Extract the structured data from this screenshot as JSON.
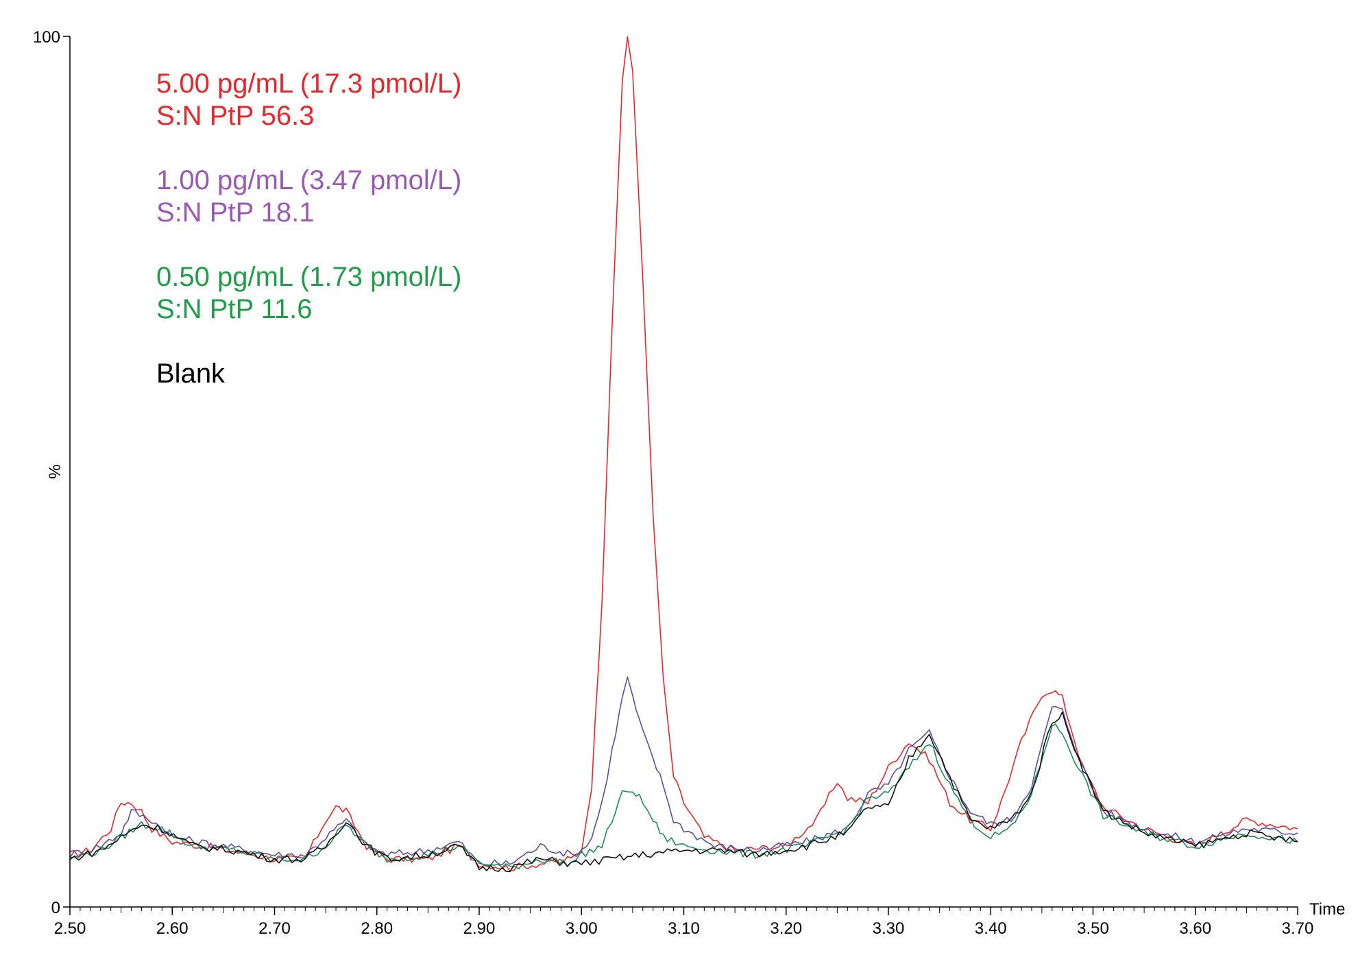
{
  "chart_data": {
    "type": "line",
    "title": "",
    "xlabel": "Time",
    "ylabel": "%",
    "xlim": [
      2.5,
      3.7
    ],
    "ylim": [
      0,
      100
    ],
    "x_ticks": [
      "2.50",
      "2.60",
      "2.70",
      "2.80",
      "2.90",
      "3.00",
      "3.10",
      "3.20",
      "3.30",
      "3.40",
      "3.50",
      "3.60",
      "3.70"
    ],
    "y_ticks": [
      "0",
      "100"
    ],
    "grid": false,
    "annotations": [
      {
        "line1": "5.00 pg/mL (17.3 pmol/L)",
        "line2": "S:N PtP 56.3",
        "color": "#e8262c"
      },
      {
        "line1": "1.00 pg/mL (3.47 pmol/L)",
        "line2": "S:N PtP 18.1",
        "color": "#9b59b6"
      },
      {
        "line1": "0.50 pg/mL (1.73 pmol/L)",
        "line2": "S:N PtP 11.6",
        "color": "#1e9e4a"
      },
      {
        "line1": "Blank",
        "line2": "",
        "color": "#000000"
      }
    ],
    "series": [
      {
        "color": "#e8262c",
        "points": [
          [
            2.5,
            6
          ],
          [
            2.52,
            6.5
          ],
          [
            2.54,
            9
          ],
          [
            2.55,
            12
          ],
          [
            2.56,
            12
          ],
          [
            2.57,
            11
          ],
          [
            2.58,
            9
          ],
          [
            2.6,
            7.5
          ],
          [
            2.63,
            7
          ],
          [
            2.66,
            6.5
          ],
          [
            2.7,
            5.5
          ],
          [
            2.73,
            5.5
          ],
          [
            2.75,
            10
          ],
          [
            2.76,
            11.5
          ],
          [
            2.77,
            11
          ],
          [
            2.79,
            7
          ],
          [
            2.81,
            5.5
          ],
          [
            2.85,
            5.5
          ],
          [
            2.88,
            7
          ],
          [
            2.9,
            5
          ],
          [
            2.93,
            4.5
          ],
          [
            2.96,
            5
          ],
          [
            2.99,
            5.5
          ],
          [
            3.0,
            6.5
          ],
          [
            3.01,
            14
          ],
          [
            3.02,
            35
          ],
          [
            3.03,
            67
          ],
          [
            3.04,
            95
          ],
          [
            3.045,
            100
          ],
          [
            3.05,
            96
          ],
          [
            3.06,
            72
          ],
          [
            3.07,
            45
          ],
          [
            3.08,
            26
          ],
          [
            3.09,
            15
          ],
          [
            3.1,
            12
          ],
          [
            3.12,
            8
          ],
          [
            3.15,
            6.5
          ],
          [
            3.2,
            7
          ],
          [
            3.23,
            10
          ],
          [
            3.25,
            14.5
          ],
          [
            3.26,
            12.5
          ],
          [
            3.28,
            12
          ],
          [
            3.3,
            16
          ],
          [
            3.32,
            19
          ],
          [
            3.34,
            17
          ],
          [
            3.36,
            12
          ],
          [
            3.38,
            10
          ],
          [
            3.4,
            9
          ],
          [
            3.41,
            12
          ],
          [
            3.43,
            19
          ],
          [
            3.45,
            24.5
          ],
          [
            3.46,
            25
          ],
          [
            3.47,
            24
          ],
          [
            3.49,
            16
          ],
          [
            3.51,
            11.5
          ],
          [
            3.55,
            9
          ],
          [
            3.6,
            7
          ],
          [
            3.65,
            10
          ],
          [
            3.7,
            9
          ]
        ]
      },
      {
        "color": "#5b4ea0",
        "points": [
          [
            2.5,
            6
          ],
          [
            2.53,
            7
          ],
          [
            2.55,
            8.5
          ],
          [
            2.56,
            11
          ],
          [
            2.58,
            10
          ],
          [
            2.6,
            8
          ],
          [
            2.65,
            7
          ],
          [
            2.7,
            6
          ],
          [
            2.73,
            6
          ],
          [
            2.75,
            8
          ],
          [
            2.77,
            10
          ],
          [
            2.79,
            7
          ],
          [
            2.81,
            6
          ],
          [
            2.85,
            6.5
          ],
          [
            2.88,
            7.5
          ],
          [
            2.9,
            5
          ],
          [
            2.93,
            5
          ],
          [
            2.96,
            7
          ],
          [
            2.99,
            6
          ],
          [
            3.0,
            6.5
          ],
          [
            3.01,
            8
          ],
          [
            3.02,
            12
          ],
          [
            3.03,
            18
          ],
          [
            3.04,
            24
          ],
          [
            3.045,
            26.5
          ],
          [
            3.05,
            24
          ],
          [
            3.06,
            20
          ],
          [
            3.07,
            17
          ],
          [
            3.08,
            14
          ],
          [
            3.09,
            10
          ],
          [
            3.1,
            9
          ],
          [
            3.13,
            7
          ],
          [
            3.17,
            6.5
          ],
          [
            3.22,
            7.5
          ],
          [
            3.26,
            9
          ],
          [
            3.28,
            13
          ],
          [
            3.3,
            14
          ],
          [
            3.32,
            18
          ],
          [
            3.34,
            20
          ],
          [
            3.36,
            15
          ],
          [
            3.38,
            11
          ],
          [
            3.4,
            9.5
          ],
          [
            3.42,
            10
          ],
          [
            3.44,
            14
          ],
          [
            3.46,
            23
          ],
          [
            3.47,
            22.5
          ],
          [
            3.49,
            16
          ],
          [
            3.51,
            11
          ],
          [
            3.55,
            9
          ],
          [
            3.6,
            7.5
          ],
          [
            3.65,
            9
          ],
          [
            3.7,
            8.5
          ]
        ]
      },
      {
        "color": "#1e8a5a",
        "points": [
          [
            2.5,
            5.5
          ],
          [
            2.53,
            6.5
          ],
          [
            2.55,
            8
          ],
          [
            2.57,
            9.5
          ],
          [
            2.59,
            9
          ],
          [
            2.62,
            7
          ],
          [
            2.66,
            6.5
          ],
          [
            2.7,
            5.5
          ],
          [
            2.73,
            5.5
          ],
          [
            2.75,
            7
          ],
          [
            2.77,
            9.5
          ],
          [
            2.79,
            7
          ],
          [
            2.81,
            5.5
          ],
          [
            2.85,
            6
          ],
          [
            2.88,
            7
          ],
          [
            2.9,
            5
          ],
          [
            2.93,
            4.5
          ],
          [
            2.96,
            5.5
          ],
          [
            2.99,
            5
          ],
          [
            3.0,
            6
          ],
          [
            3.02,
            7
          ],
          [
            3.03,
            10
          ],
          [
            3.04,
            13
          ],
          [
            3.05,
            13.5
          ],
          [
            3.06,
            12
          ],
          [
            3.07,
            10
          ],
          [
            3.08,
            8
          ],
          [
            3.1,
            7
          ],
          [
            3.13,
            6.5
          ],
          [
            3.17,
            6
          ],
          [
            3.22,
            7
          ],
          [
            3.26,
            9
          ],
          [
            3.28,
            12.5
          ],
          [
            3.3,
            13
          ],
          [
            3.32,
            16
          ],
          [
            3.34,
            19
          ],
          [
            3.36,
            14
          ],
          [
            3.38,
            10
          ],
          [
            3.4,
            8
          ],
          [
            3.42,
            9
          ],
          [
            3.44,
            13
          ],
          [
            3.46,
            21
          ],
          [
            3.47,
            20
          ],
          [
            3.49,
            15
          ],
          [
            3.51,
            10.5
          ],
          [
            3.55,
            8.5
          ],
          [
            3.6,
            7
          ],
          [
            3.65,
            8.5
          ],
          [
            3.7,
            7.5
          ]
        ]
      },
      {
        "color": "#111111",
        "points": [
          [
            2.5,
            5.5
          ],
          [
            2.53,
            6.5
          ],
          [
            2.55,
            8
          ],
          [
            2.57,
            9.5
          ],
          [
            2.59,
            9
          ],
          [
            2.62,
            7
          ],
          [
            2.66,
            6.5
          ],
          [
            2.7,
            5.5
          ],
          [
            2.73,
            5.5
          ],
          [
            2.75,
            7
          ],
          [
            2.77,
            10
          ],
          [
            2.79,
            7
          ],
          [
            2.81,
            5.5
          ],
          [
            2.85,
            6
          ],
          [
            2.88,
            7
          ],
          [
            2.9,
            4.5
          ],
          [
            2.93,
            4.5
          ],
          [
            2.96,
            5.5
          ],
          [
            2.99,
            5
          ],
          [
            3.0,
            5
          ],
          [
            3.03,
            5.5
          ],
          [
            3.06,
            6
          ],
          [
            3.1,
            6.5
          ],
          [
            3.14,
            6.5
          ],
          [
            3.17,
            6
          ],
          [
            3.22,
            7
          ],
          [
            3.26,
            8.5
          ],
          [
            3.28,
            11.5
          ],
          [
            3.3,
            11.5
          ],
          [
            3.32,
            17
          ],
          [
            3.34,
            20
          ],
          [
            3.36,
            15
          ],
          [
            3.38,
            10
          ],
          [
            3.4,
            9
          ],
          [
            3.42,
            10
          ],
          [
            3.44,
            13
          ],
          [
            3.46,
            21.5
          ],
          [
            3.47,
            22
          ],
          [
            3.49,
            16
          ],
          [
            3.51,
            11
          ],
          [
            3.55,
            8.5
          ],
          [
            3.6,
            7
          ],
          [
            3.65,
            8.5
          ],
          [
            3.7,
            7.5
          ]
        ]
      }
    ]
  }
}
